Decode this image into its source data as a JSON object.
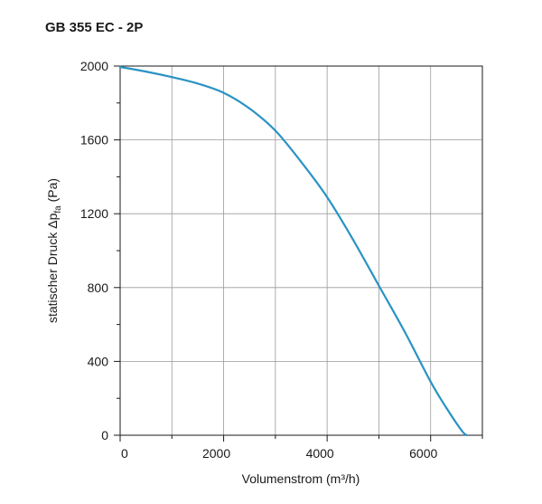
{
  "chart_data": {
    "type": "line",
    "title": "GB 355 EC - 2P",
    "xlabel": "Volumenstrom (m³/h)",
    "ylabel_main": "statischer Druck Δp",
    "ylabel_sub": "fa",
    "ylabel_unit": " (Pa)",
    "xlim": [
      0,
      7000
    ],
    "ylim": [
      0,
      2000
    ],
    "xticks": [
      0,
      2000,
      4000,
      6000
    ],
    "xgrid": [
      0,
      1000,
      2000,
      3000,
      4000,
      5000,
      6000,
      7000
    ],
    "yticks": [
      0,
      400,
      800,
      1200,
      1600,
      2000
    ],
    "yminor": [
      200,
      600,
      1000,
      1400,
      1800
    ],
    "grid": true,
    "series": [
      {
        "name": "GB 355 EC - 2P",
        "color": "#2a93c4",
        "x": [
          0,
          500,
          1000,
          1500,
          2000,
          2500,
          3000,
          3500,
          4000,
          4500,
          5000,
          5500,
          6000,
          6300,
          6600,
          6700
        ],
        "y": [
          1995,
          1970,
          1940,
          1905,
          1855,
          1770,
          1650,
          1480,
          1290,
          1060,
          810,
          560,
          290,
          150,
          25,
          0
        ]
      }
    ]
  }
}
